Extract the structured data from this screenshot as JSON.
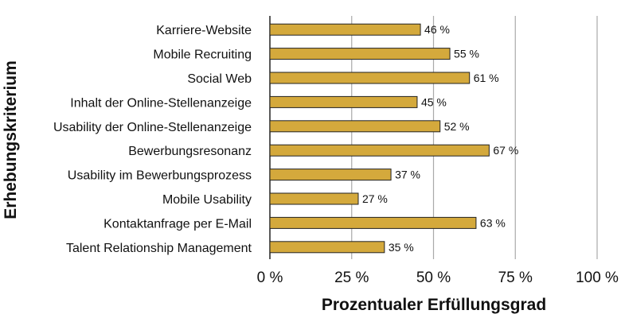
{
  "chart_data": {
    "type": "bar",
    "orientation": "horizontal",
    "categories": [
      "Karriere-Website",
      "Mobile Recruiting",
      "Social Web",
      "Inhalt der Online-Stellenanzeige",
      "Usability der Online-Stellenanzeige",
      "Bewerbungsresonanz",
      "Usability im Bewerbungsprozess",
      "Mobile Usability",
      "Kontaktanfrage per E-Mail",
      "Talent Relationship Management"
    ],
    "values": [
      46,
      55,
      61,
      45,
      52,
      67,
      37,
      27,
      63,
      35
    ],
    "value_labels": [
      "46 %",
      "55 %",
      "61 %",
      "45 %",
      "52 %",
      "67 %",
      "37 %",
      "27 %",
      "63 %",
      "35 %"
    ],
    "xlim": [
      0,
      100
    ],
    "xticks": [
      0,
      25,
      50,
      75,
      100
    ],
    "xtick_labels": [
      "0 %",
      "25 %",
      "50 %",
      "75 %",
      "100 %"
    ],
    "xlabel": "Prozentualer Erfüllungsgrad",
    "ylabel": "Erhebungskriterium",
    "title": "",
    "grid": true,
    "colors": {
      "bar": "#d4a93c",
      "bar_edge": "#222222",
      "grid": "#aaaaaa",
      "axis": "#222222"
    }
  }
}
